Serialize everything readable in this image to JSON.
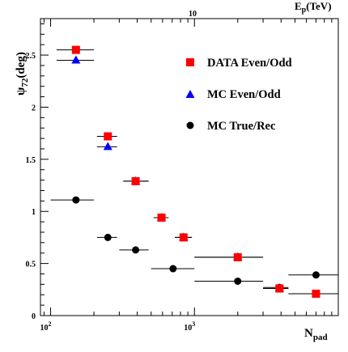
{
  "chart_data": {
    "type": "scatter",
    "title": "",
    "xlabel": "N",
    "xlabel_sub": "pad",
    "ylabel": "ψ",
    "ylabel_sub": "72",
    "ylabel_unit": "(deg)",
    "top_axis_label": "E",
    "top_axis_label_sub": "p",
    "top_axis_label_unit": "(TeV)",
    "top_axis_tick": "10",
    "x_scale": "log",
    "xlim": [
      85,
      10000
    ],
    "ylim": [
      0,
      2.85
    ],
    "x_tick_labels": [
      "10",
      "2",
      "10",
      "3"
    ],
    "y_tick_labels": [
      "0",
      "0.5",
      "1",
      "1.5",
      "2",
      "2.5"
    ],
    "y_ticks": [
      0,
      0.5,
      1,
      1.5,
      2,
      2.5
    ],
    "grid": false,
    "legend_position": "top-right",
    "series": [
      {
        "name": "DATA Even/Odd",
        "marker": "square",
        "color": "#ff0000",
        "points": [
          {
            "x": 150,
            "y": 2.55,
            "xerr": [
              110,
              200
            ]
          },
          {
            "x": 250,
            "y": 1.72,
            "xerr": [
              210,
              290
            ]
          },
          {
            "x": 390,
            "y": 1.29,
            "xerr": [
              320,
              480
            ]
          },
          {
            "x": 590,
            "y": 0.94,
            "xerr": [
              520,
              660
            ]
          },
          {
            "x": 840,
            "y": 0.75,
            "xerr": [
              730,
              960
            ]
          },
          {
            "x": 2000,
            "y": 0.56,
            "xerr": [
              1000,
              3000
            ]
          },
          {
            "x": 3900,
            "y": 0.26,
            "xerr": [
              3000,
              4500
            ]
          },
          {
            "x": 7000,
            "y": 0.21,
            "xerr": [
              4500,
              10000
            ]
          }
        ]
      },
      {
        "name": "MC Even/Odd",
        "marker": "triangle",
        "color": "#0000ff",
        "points": [
          {
            "x": 150,
            "y": 2.45,
            "xerr": [
              110,
              200
            ]
          },
          {
            "x": 250,
            "y": 1.62,
            "xerr": [
              210,
              290
            ]
          },
          {
            "x": 390,
            "y": 1.29,
            "xerr": [
              320,
              480
            ]
          },
          {
            "x": 590,
            "y": 0.94,
            "xerr": [
              520,
              660
            ]
          },
          {
            "x": 840,
            "y": 0.75,
            "xerr": [
              730,
              960
            ]
          },
          {
            "x": 2000,
            "y": 0.56,
            "xerr": [
              1000,
              3000
            ]
          },
          {
            "x": 3900,
            "y": 0.26,
            "xerr": [
              3000,
              4500
            ]
          }
        ]
      },
      {
        "name": "MC True/Rec",
        "marker": "circle",
        "color": "#000000",
        "points": [
          {
            "x": 150,
            "y": 1.11,
            "xerr": [
              100,
              200
            ]
          },
          {
            "x": 250,
            "y": 0.75,
            "xerr": [
              210,
              290
            ]
          },
          {
            "x": 390,
            "y": 0.63,
            "xerr": [
              300,
              480
            ]
          },
          {
            "x": 710,
            "y": 0.45,
            "xerr": [
              500,
              1000
            ]
          },
          {
            "x": 2000,
            "y": 0.33,
            "xerr": [
              1000,
              3000
            ]
          },
          {
            "x": 3900,
            "y": 0.27,
            "xerr": [
              3000,
              4500
            ]
          },
          {
            "x": 7000,
            "y": 0.39,
            "xerr": [
              4500,
              10000
            ]
          }
        ]
      }
    ]
  }
}
